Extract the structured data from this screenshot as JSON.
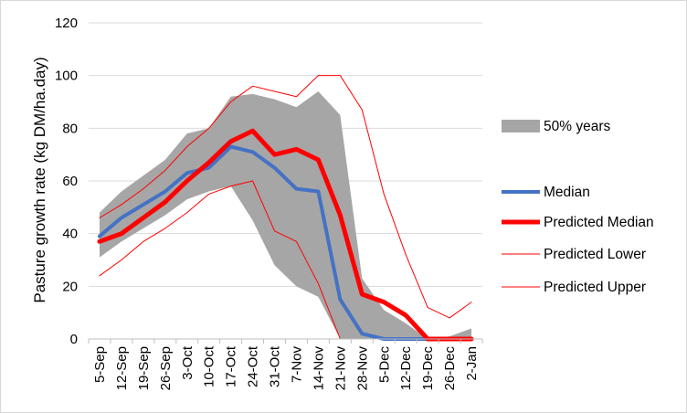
{
  "chart_data": {
    "type": "line",
    "title": "",
    "xlabel": "",
    "ylabel": "Pasture growth rate (kg DM/ha.day)",
    "ylim": [
      0,
      120
    ],
    "yticks": [
      0,
      20,
      40,
      60,
      80,
      100,
      120
    ],
    "grid": true,
    "legend_position": "right",
    "categories": [
      "5-Sep",
      "12-Sep",
      "19-Sep",
      "26-Sep",
      "3-Oct",
      "10-Oct",
      "17-Oct",
      "24-Oct",
      "31-Oct",
      "7-Nov",
      "14-Nov",
      "21-Nov",
      "28-Nov",
      "5-Dec",
      "12-Dec",
      "19-Dec",
      "26-Dec",
      "2-Jan"
    ],
    "band": {
      "name": "50% years",
      "color": "#a6a6a6",
      "lower": [
        31,
        37,
        42,
        47,
        53,
        56,
        58,
        45,
        28,
        20,
        16,
        0,
        0,
        0,
        0,
        0,
        0,
        0
      ],
      "upper": [
        48,
        56,
        62,
        68,
        78,
        80,
        92,
        93,
        91,
        88,
        94,
        85,
        23,
        11,
        6,
        0,
        1,
        4
      ]
    },
    "series": [
      {
        "name": "Median",
        "color": "#4472c4",
        "width": 4,
        "values": [
          39,
          46,
          51,
          56,
          63,
          65,
          73,
          71,
          65,
          57,
          56,
          15,
          2,
          0,
          0,
          0,
          0,
          0
        ]
      },
      {
        "name": "Predicted Median",
        "color": "#ff0000",
        "width": 5,
        "values": [
          37,
          40,
          46,
          52,
          60,
          67,
          75,
          79,
          70,
          72,
          68,
          47,
          17,
          14,
          9,
          0,
          0,
          0
        ]
      },
      {
        "name": "Predicted Lower",
        "color": "#ff0000",
        "width": 1,
        "values": [
          24,
          30,
          37,
          42,
          48,
          55,
          58,
          60,
          41,
          37,
          21,
          0,
          0,
          0,
          0,
          0,
          0,
          0
        ]
      },
      {
        "name": "Predicted Upper",
        "color": "#ff0000",
        "width": 1,
        "values": [
          46,
          51,
          57,
          64,
          73,
          80,
          90,
          96,
          94,
          92,
          100,
          100,
          87,
          55,
          32,
          12,
          8,
          14
        ]
      }
    ]
  },
  "colors": {
    "gridline": "#d9d9d9",
    "axis": "#bfbfbf",
    "background": "#ffffff"
  }
}
